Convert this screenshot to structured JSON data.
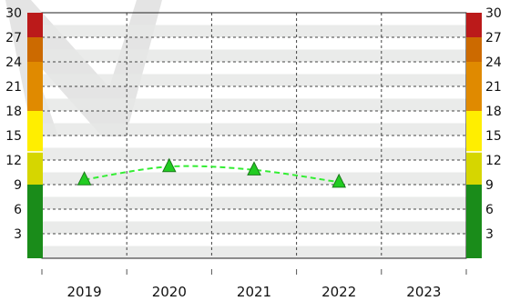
{
  "chart_data": {
    "type": "line",
    "title": "",
    "xlabel": "",
    "ylabel": "",
    "categories": [
      "2019",
      "2020",
      "2021",
      "2022",
      "2023"
    ],
    "series": [
      {
        "values": [
          9.6,
          11.2,
          10.8,
          9.3,
          null
        ],
        "color": "#33ee33",
        "marker": "triangle",
        "line_style": "dashed"
      }
    ],
    "ylim": [
      0,
      30
    ],
    "yticks": [
      3,
      6,
      9,
      12,
      15,
      18,
      21,
      24,
      27,
      30
    ],
    "grid": true,
    "legend": "none",
    "color_scale": [
      {
        "from": 0,
        "to": 9,
        "color": "#1a8c1a"
      },
      {
        "from": 9,
        "to": 13,
        "color": "#d6d600"
      },
      {
        "from": 13,
        "to": 18,
        "color": "#ffee00"
      },
      {
        "from": 18,
        "to": 24,
        "color": "#e08a00"
      },
      {
        "from": 24,
        "to": 27,
        "color": "#cc6a00"
      },
      {
        "from": 27,
        "to": 30,
        "color": "#bb1a1a"
      }
    ],
    "stripe_color": "#e6e8e6",
    "watermark_color": "#e4e4e4"
  }
}
